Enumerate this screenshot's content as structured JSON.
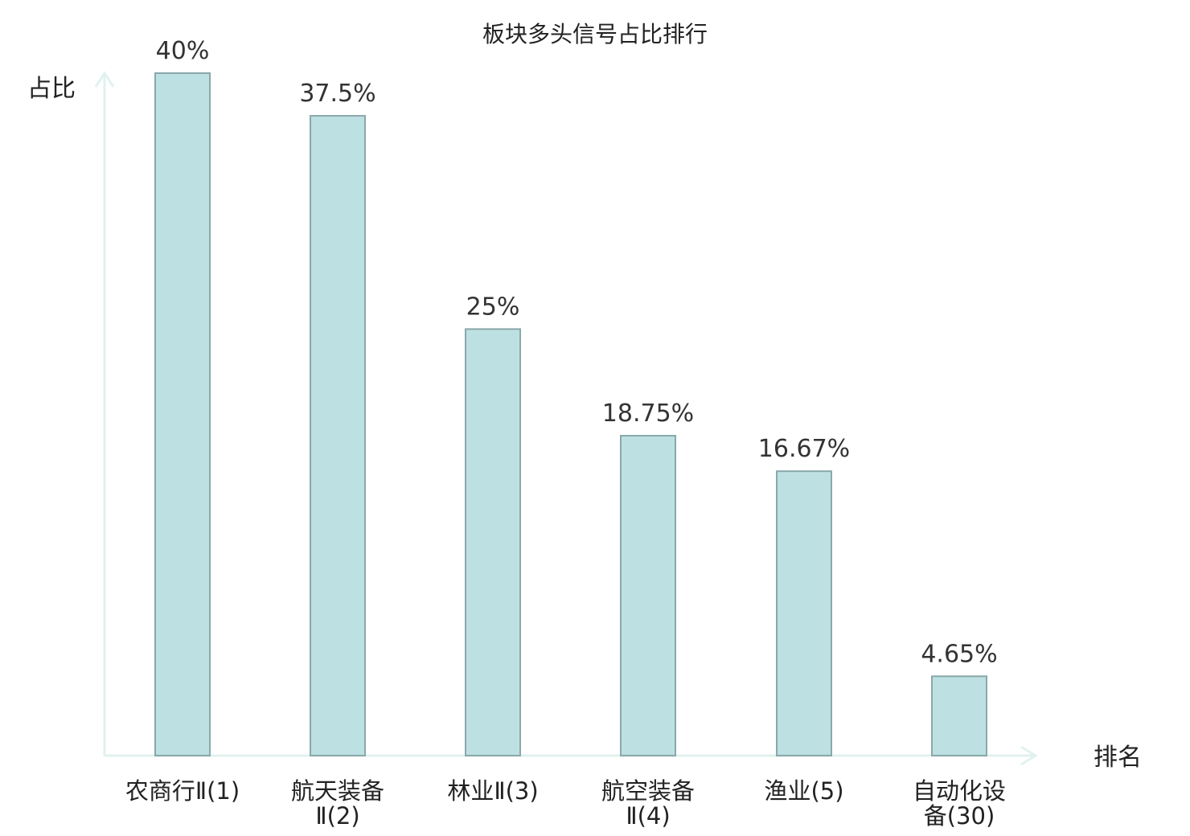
{
  "chart_data": {
    "type": "bar",
    "title": "板块多头信号占比排行",
    "ylabel": "占比",
    "xlabel": "排名",
    "categories": [
      [
        "农商行Ⅱ(1)"
      ],
      [
        "航天装备",
        "Ⅱ(2)"
      ],
      [
        "林业Ⅱ(3)"
      ],
      [
        "航空装备",
        "Ⅱ(4)"
      ],
      [
        "渔业(5)"
      ],
      [
        "自动化设",
        "备(30)"
      ]
    ],
    "values": [
      40,
      37.5,
      25,
      18.75,
      16.67,
      4.65
    ],
    "value_labels": [
      "40%",
      "37.5%",
      "25%",
      "18.75%",
      "16.67%",
      "4.65%"
    ],
    "highlight_index": 5,
    "ylim": [
      0,
      40
    ],
    "grid": false,
    "colors": {
      "bar_fill": "#bde0e3",
      "bar_stroke": "#8aa8aa",
      "axis": "#e0f2ef",
      "highlight_text": "#e0191b",
      "text": "#222222",
      "value_text": "#333333"
    }
  }
}
